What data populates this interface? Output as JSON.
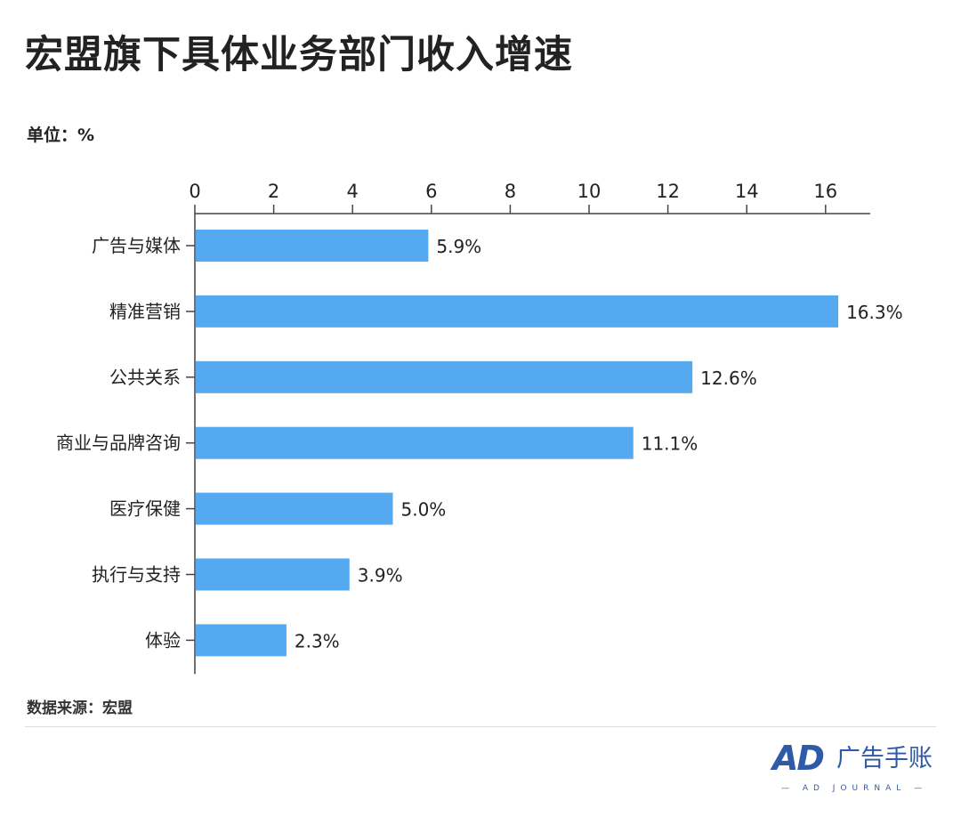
{
  "title": "宏盟旗下具体业务部门收入增速",
  "unit_label": "单位：%",
  "source": "数据来源：宏盟",
  "logo": {
    "main": "AD",
    "chinese": "广告手账",
    "english": "— AD JOURNAL —"
  },
  "colors": {
    "bar": "#55a9f1",
    "axis": "#444444",
    "text": "#222222"
  },
  "chart_data": {
    "type": "bar",
    "orientation": "horizontal",
    "title": "宏盟旗下具体业务部门收入增速",
    "xlabel": "",
    "ylabel": "",
    "xlim": [
      0,
      17
    ],
    "ticks": [
      0,
      2,
      4,
      6,
      8,
      10,
      12,
      14,
      16
    ],
    "tick_labels": [
      "0",
      "2",
      "4",
      "6",
      "8",
      "10",
      "12",
      "14",
      "16"
    ],
    "categories": [
      "广告与媒体",
      "精准营销",
      "公共关系",
      "商业与品牌咨询",
      "医疗保健",
      "执行与支持",
      "体验"
    ],
    "values": [
      5.9,
      16.3,
      12.6,
      11.1,
      5.0,
      3.9,
      2.3
    ],
    "data_labels": [
      "5.9%",
      "16.3%",
      "12.6%",
      "11.1%",
      "5.0%",
      "3.9%",
      "2.3%"
    ],
    "axis_position": "top",
    "grid": false,
    "legend": "none"
  }
}
